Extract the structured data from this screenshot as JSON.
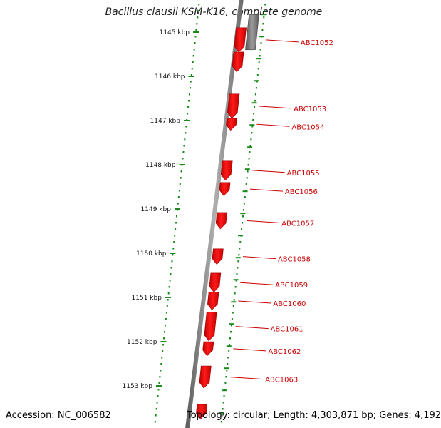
{
  "title": "Bacillus clausii KSM-K16, complete genome",
  "accession": "Accession: NC_006582",
  "topology": "Topology: circular; Length: 4,303,871 bp; Genes: 4,192",
  "colors": {
    "gene": "#ee0000",
    "gene_dark": "#a00000",
    "backbone": "#808080",
    "ticks": "#1a8a1a",
    "label": "#cc0000"
  },
  "scale": {
    "unit": "kbp",
    "ticks": [
      {
        "value": 1145,
        "label": "1145 kbp"
      },
      {
        "value": 1146,
        "label": "1146 kbp"
      },
      {
        "value": 1147,
        "label": "1147 kbp"
      },
      {
        "value": 1148,
        "label": "1148 kbp"
      },
      {
        "value": 1149,
        "label": "1149 kbp"
      },
      {
        "value": 1150,
        "label": "1150 kbp"
      },
      {
        "value": 1151,
        "label": "1151 kbp"
      },
      {
        "value": 1152,
        "label": "1152 kbp"
      },
      {
        "value": 1153,
        "label": "1153 kbp"
      }
    ]
  },
  "genes": [
    {
      "label": "ABC1052",
      "start_kbp": 1144.9,
      "end_kbp": 1145.45
    },
    {
      "label": "",
      "start_kbp": 1145.45,
      "end_kbp": 1145.9
    },
    {
      "label": "ABC1053",
      "start_kbp": 1146.4,
      "end_kbp": 1146.95
    },
    {
      "label": "ABC1054",
      "start_kbp": 1146.95,
      "end_kbp": 1147.22
    },
    {
      "label": "ABC1055",
      "start_kbp": 1147.9,
      "end_kbp": 1148.35
    },
    {
      "label": "ABC1056",
      "start_kbp": 1148.4,
      "end_kbp": 1148.7
    },
    {
      "label": "ABC1057",
      "start_kbp": 1149.08,
      "end_kbp": 1149.45
    },
    {
      "label": "ABC1058",
      "start_kbp": 1149.9,
      "end_kbp": 1150.25
    },
    {
      "label": "ABC1059",
      "start_kbp": 1150.45,
      "end_kbp": 1150.88
    },
    {
      "label": "ABC1060",
      "start_kbp": 1150.88,
      "end_kbp": 1151.28
    },
    {
      "label": "ABC1061",
      "start_kbp": 1151.33,
      "end_kbp": 1151.98
    },
    {
      "label": "ABC1062",
      "start_kbp": 1152.0,
      "end_kbp": 1152.32
    },
    {
      "label": "ABC1063",
      "start_kbp": 1152.55,
      "end_kbp": 1153.05
    },
    {
      "label": "",
      "start_kbp": 1153.42,
      "end_kbp": 1153.75
    }
  ],
  "reverse_genes": [
    {
      "start_kbp": 1144.6,
      "end_kbp": 1145.4
    }
  ]
}
